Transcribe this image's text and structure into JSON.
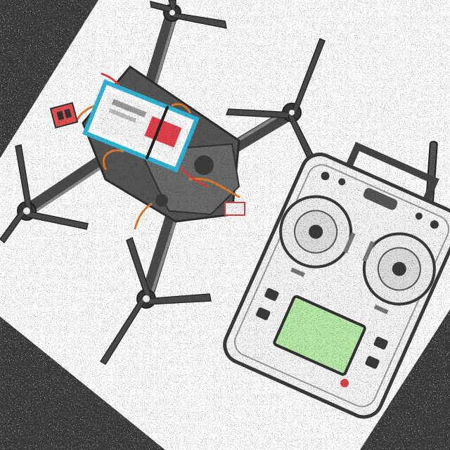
{
  "scene": {
    "subjects": [
      "quadcopter-drone",
      "rc-transmitter"
    ],
    "colors": {
      "outer_background": "#3a3a3a",
      "paper": "#fbfbfb",
      "frame": "#4a4a4a",
      "battery_blue": "#2fb4d8",
      "battery_red": "#e0404a",
      "wire_orange": "#e07a2a",
      "lcd_green": "#b6e8a6",
      "controller_body": "#f4f4f4"
    }
  }
}
